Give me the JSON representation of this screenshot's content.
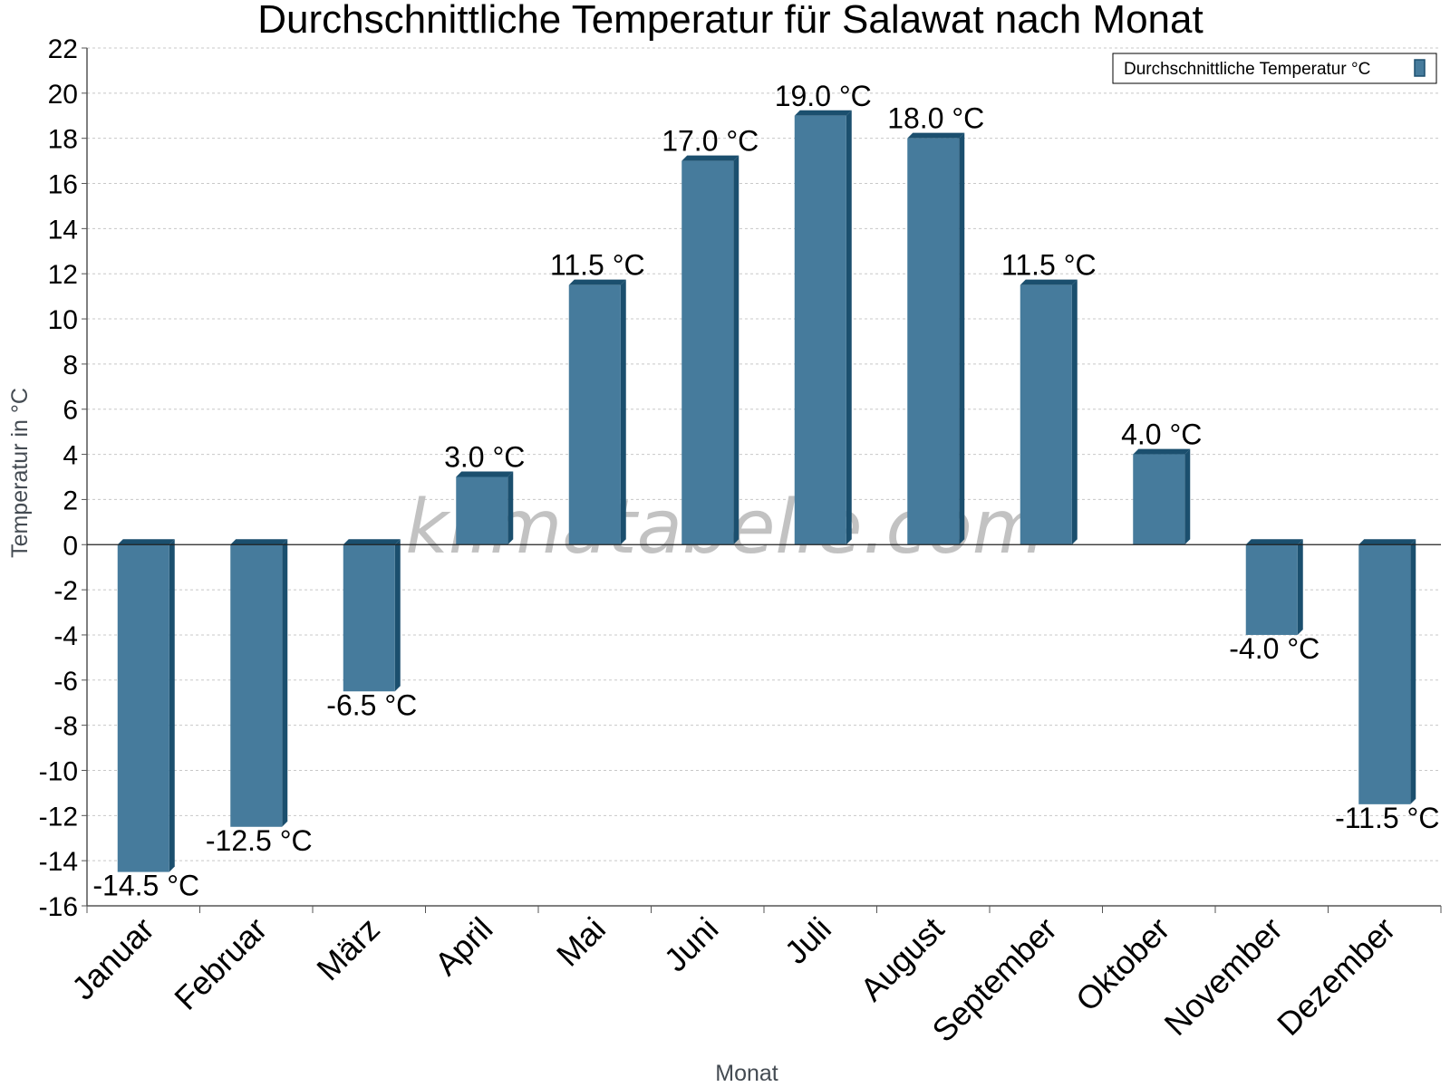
{
  "chart_data": {
    "type": "bar",
    "title": "Durchschnittliche Temperatur für Salawat nach Monat",
    "xlabel": "Monat",
    "ylabel": "Temperatur in °C",
    "ylim": [
      -16,
      22
    ],
    "ytick_step": 2,
    "grid": true,
    "legend_position": "top-right",
    "categories": [
      "Januar",
      "Februar",
      "März",
      "April",
      "Mai",
      "Juni",
      "Juli",
      "August",
      "September",
      "Oktober",
      "November",
      "Dezember"
    ],
    "series": [
      {
        "name": "Durchschnittliche Temperatur °C",
        "values": [
          -14.5,
          -12.5,
          -6.5,
          3.0,
          11.5,
          17.0,
          19.0,
          18.0,
          11.5,
          4.0,
          -4.0,
          -11.5
        ],
        "labels": [
          "-14.5 °C",
          "-12.5 °C",
          "-6.5 °C",
          "3.0 °C",
          "11.5 °C",
          "17.0 °C",
          "19.0 °C",
          "18.0 °C",
          "11.5 °C",
          "4.0 °C",
          "-4.0 °C",
          "-11.5 °C"
        ],
        "color": "#467b9c",
        "side_color": "#1b4f6e"
      }
    ],
    "watermark": "klimatabelle.com"
  }
}
